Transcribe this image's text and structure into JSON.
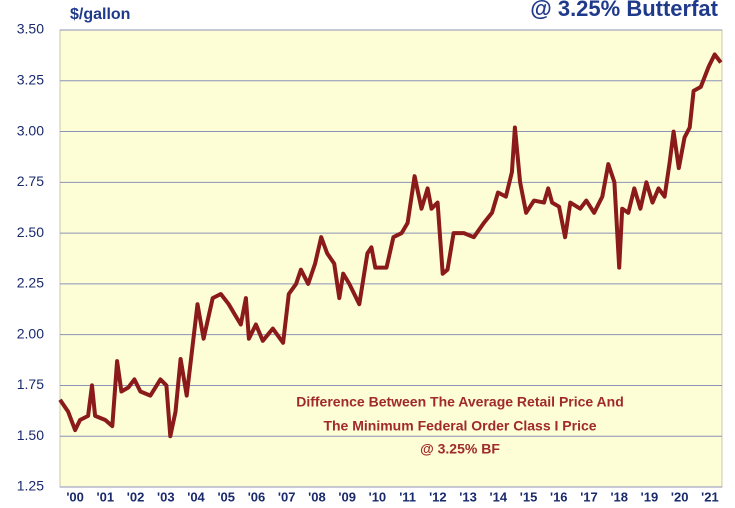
{
  "chart_data": {
    "type": "line",
    "title": "@ 3.25% Butterfat",
    "y_axis_label": "$/gallon",
    "annotation": [
      "Difference Between The Average Retail Price And",
      "The Minimum Federal Order Class I Price",
      "@ 3.25% BF"
    ],
    "color": "#8b1a1a",
    "grid": true,
    "x": [
      2000.0,
      2000.27,
      2000.5,
      2000.66,
      2000.93,
      2001.06,
      2001.16,
      2001.5,
      2001.73,
      2001.89,
      2002.03,
      2002.26,
      2002.46,
      2002.66,
      2002.99,
      2003.32,
      2003.52,
      2003.65,
      2003.82,
      2003.99,
      2004.19,
      2004.55,
      2004.75,
      2005.05,
      2005.32,
      2005.58,
      2005.78,
      2005.98,
      2006.15,
      2006.25,
      2006.48,
      2006.71,
      2007.04,
      2007.38,
      2007.57,
      2007.81,
      2007.97,
      2008.21,
      2008.44,
      2008.64,
      2008.84,
      2009.07,
      2009.24,
      2009.37,
      2009.57,
      2009.9,
      2010.17,
      2010.3,
      2010.43,
      2010.8,
      2011.03,
      2011.3,
      2011.5,
      2011.73,
      2011.96,
      2012.16,
      2012.29,
      2012.49,
      2012.66,
      2012.82,
      2013.02,
      2013.36,
      2013.69,
      2014.02,
      2014.29,
      2014.49,
      2014.75,
      2014.95,
      2015.05,
      2015.22,
      2015.42,
      2015.68,
      2016.01,
      2016.15,
      2016.28,
      2016.51,
      2016.71,
      2016.88,
      2017.21,
      2017.41,
      2017.67,
      2017.94,
      2018.14,
      2018.34,
      2018.5,
      2018.6,
      2018.8,
      2019.0,
      2019.2,
      2019.4,
      2019.6,
      2019.8,
      2020.0,
      2020.17,
      2020.3,
      2020.47,
      2020.66,
      2020.83,
      2020.96,
      2021.2,
      2021.46,
      2021.66,
      2021.86
    ],
    "values": [
      1.68,
      1.62,
      1.53,
      1.58,
      1.6,
      1.75,
      1.6,
      1.58,
      1.55,
      1.87,
      1.72,
      1.74,
      1.78,
      1.72,
      1.7,
      1.78,
      1.75,
      1.5,
      1.62,
      1.88,
      1.7,
      2.15,
      1.98,
      2.18,
      2.2,
      2.15,
      2.1,
      2.05,
      2.18,
      1.98,
      2.05,
      1.97,
      2.03,
      1.96,
      2.2,
      2.25,
      2.32,
      2.25,
      2.35,
      2.48,
      2.4,
      2.35,
      2.18,
      2.3,
      2.25,
      2.15,
      2.4,
      2.43,
      2.33,
      2.33,
      2.48,
      2.5,
      2.55,
      2.78,
      2.62,
      2.72,
      2.62,
      2.65,
      2.3,
      2.32,
      2.5,
      2.5,
      2.48,
      2.55,
      2.6,
      2.7,
      2.68,
      2.8,
      3.02,
      2.75,
      2.6,
      2.66,
      2.65,
      2.72,
      2.65,
      2.63,
      2.48,
      2.65,
      2.62,
      2.66,
      2.6,
      2.68,
      2.84,
      2.75,
      2.33,
      2.62,
      2.6,
      2.72,
      2.62,
      2.75,
      2.65,
      2.72,
      2.68,
      2.85,
      3.0,
      2.82,
      2.97,
      3.02,
      3.2,
      3.22,
      3.32,
      3.38,
      3.34
    ],
    "xlim": [
      2000,
      2021.9
    ],
    "xticks": [
      {
        "value": 2000.5,
        "label": "'00"
      },
      {
        "value": 2001.5,
        "label": "'01"
      },
      {
        "value": 2002.5,
        "label": "'02"
      },
      {
        "value": 2003.5,
        "label": "'03"
      },
      {
        "value": 2004.5,
        "label": "'04"
      },
      {
        "value": 2005.5,
        "label": "'05"
      },
      {
        "value": 2006.5,
        "label": "'06"
      },
      {
        "value": 2007.5,
        "label": "'07"
      },
      {
        "value": 2008.5,
        "label": "'08"
      },
      {
        "value": 2009.5,
        "label": "'09"
      },
      {
        "value": 2010.5,
        "label": "'10"
      },
      {
        "value": 2011.5,
        "label": "'11"
      },
      {
        "value": 2012.5,
        "label": "'12"
      },
      {
        "value": 2013.5,
        "label": "'13"
      },
      {
        "value": 2014.5,
        "label": "'14"
      },
      {
        "value": 2015.5,
        "label": "'15"
      },
      {
        "value": 2016.5,
        "label": "'16"
      },
      {
        "value": 2017.5,
        "label": "'17"
      },
      {
        "value": 2018.5,
        "label": "'18"
      },
      {
        "value": 2019.5,
        "label": "'19"
      },
      {
        "value": 2020.5,
        "label": "'20"
      },
      {
        "value": 2021.5,
        "label": "'21"
      }
    ],
    "ylim": [
      1.25,
      3.5
    ],
    "yticks": [
      {
        "value": 1.25,
        "label": "1.25"
      },
      {
        "value": 1.5,
        "label": "1.50"
      },
      {
        "value": 1.75,
        "label": "1.75"
      },
      {
        "value": 2.0,
        "label": "2.00"
      },
      {
        "value": 2.25,
        "label": "2.25"
      },
      {
        "value": 2.5,
        "label": "2.50"
      },
      {
        "value": 2.75,
        "label": "2.75"
      },
      {
        "value": 3.0,
        "label": "3.00"
      },
      {
        "value": 3.25,
        "label": "3.25"
      },
      {
        "value": 3.5,
        "label": "3.50"
      }
    ]
  }
}
